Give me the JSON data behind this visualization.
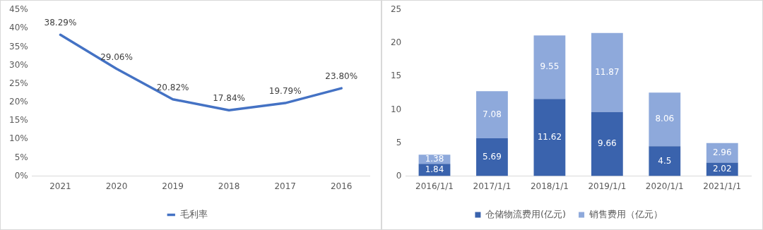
{
  "chart_data": [
    {
      "type": "line",
      "categories": [
        "2021",
        "2020",
        "2019",
        "2018",
        "2017",
        "2016"
      ],
      "series": [
        {
          "name": "毛利率",
          "color": "#4472c4",
          "values": [
            38.29,
            29.06,
            20.82,
            17.84,
            19.79,
            23.8
          ],
          "value_labels": [
            "38.29%",
            "29.06%",
            "20.82%",
            "17.84%",
            "19.79%",
            "23.80%"
          ]
        }
      ],
      "ylim": [
        0,
        45
      ],
      "yticks": [
        {
          "value": 0,
          "label": "0%"
        },
        {
          "value": 5,
          "label": "5%"
        },
        {
          "value": 10,
          "label": "10%"
        },
        {
          "value": 15,
          "label": "15%"
        },
        {
          "value": 20,
          "label": "20%"
        },
        {
          "value": 25,
          "label": "25%"
        },
        {
          "value": 30,
          "label": "30%"
        },
        {
          "value": 35,
          "label": "35%"
        },
        {
          "value": 40,
          "label": "40%"
        },
        {
          "value": 45,
          "label": "45%"
        }
      ],
      "legend": "bottom",
      "marker": "none",
      "line_style": "solid"
    },
    {
      "type": "bar",
      "stacked": true,
      "data_labels": true,
      "categories": [
        "2016/1/1",
        "2017/1/1",
        "2018/1/1",
        "2019/1/1",
        "2020/1/1",
        "2021/1/1"
      ],
      "series": [
        {
          "name": "仓储物流费用(亿元)",
          "color": "#3a63ad",
          "values": [
            1.84,
            5.69,
            11.62,
            9.66,
            4.5,
            2.02
          ]
        },
        {
          "name": "销售费用（亿元）",
          "color": "#8ea9db",
          "values": [
            1.38,
            7.08,
            9.55,
            11.87,
            8.06,
            2.96
          ]
        }
      ],
      "ylim": [
        0,
        25
      ],
      "yticks": [
        0,
        5,
        10,
        15,
        20,
        25
      ],
      "legend": "bottom"
    }
  ]
}
